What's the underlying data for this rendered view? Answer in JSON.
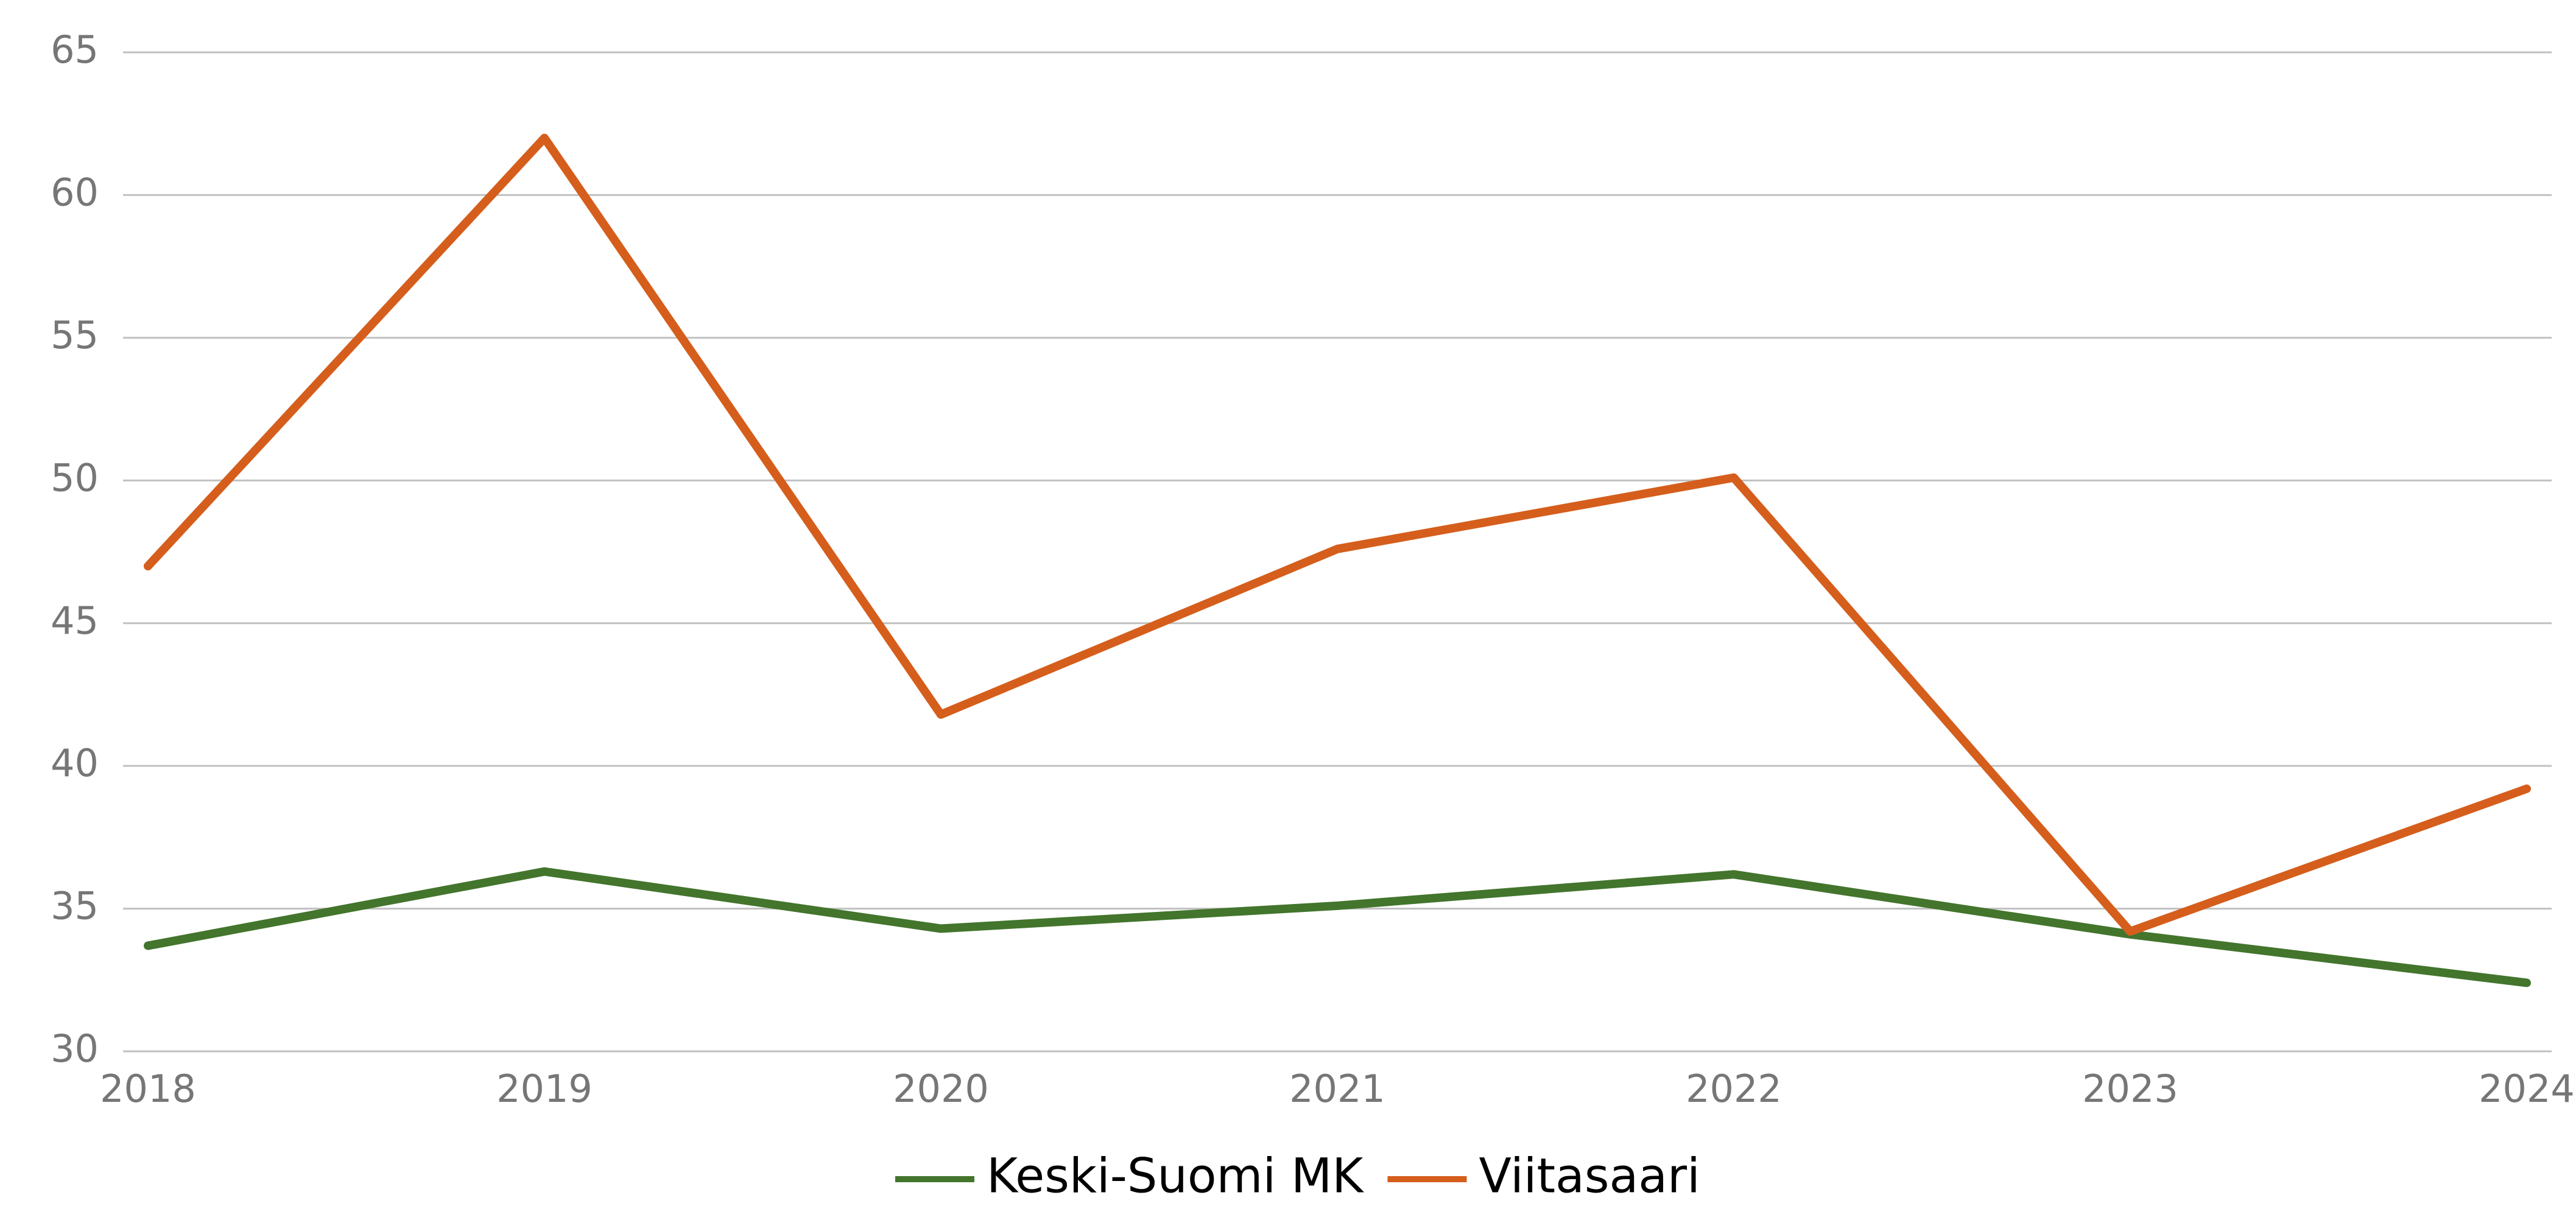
{
  "chart_data": {
    "type": "line",
    "categories": [
      "2018",
      "2019",
      "2020",
      "2021",
      "2022",
      "2023",
      "2024"
    ],
    "series": [
      {
        "name": "Keski-Suomi MK",
        "color": "#43752d",
        "values": [
          33.7,
          36.3,
          34.3,
          35.1,
          36.2,
          34.1,
          32.4
        ]
      },
      {
        "name": "Viitasaari",
        "color": "#d55e1c",
        "values": [
          47.0,
          62.0,
          41.8,
          47.6,
          50.1,
          34.2,
          39.2
        ]
      }
    ],
    "ylim": [
      30,
      65
    ],
    "yticks": [
      30,
      35,
      40,
      45,
      50,
      55,
      60,
      65
    ],
    "grid": true,
    "legend": "bottom"
  }
}
